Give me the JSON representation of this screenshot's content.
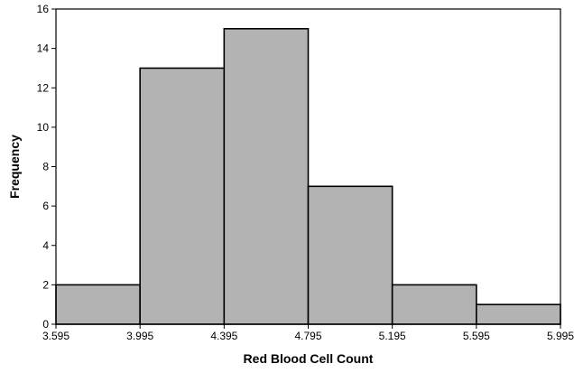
{
  "chart_data": {
    "type": "bar",
    "subtype": "histogram",
    "title": "",
    "xlabel": "Red Blood Cell Count",
    "ylabel": "Frequency",
    "bin_edges": [
      3.595,
      3.995,
      4.395,
      4.795,
      5.195,
      5.595,
      5.995
    ],
    "x_tick_labels": [
      "3.595",
      "3.995",
      "4.395",
      "4.795",
      "5.195",
      "5.595",
      "5.995"
    ],
    "values": [
      2,
      13,
      15,
      7,
      2,
      1
    ],
    "ylim": [
      0,
      16
    ],
    "y_ticks": [
      0,
      2,
      4,
      6,
      8,
      10,
      12,
      14,
      16
    ],
    "y_tick_labels": [
      "0",
      "2",
      "4",
      "6",
      "8",
      "10",
      "12",
      "14",
      "16"
    ],
    "grid": false,
    "legend": "none",
    "colors": {
      "bar_fill": "#b3b3b3",
      "bar_edge": "#000000"
    }
  }
}
